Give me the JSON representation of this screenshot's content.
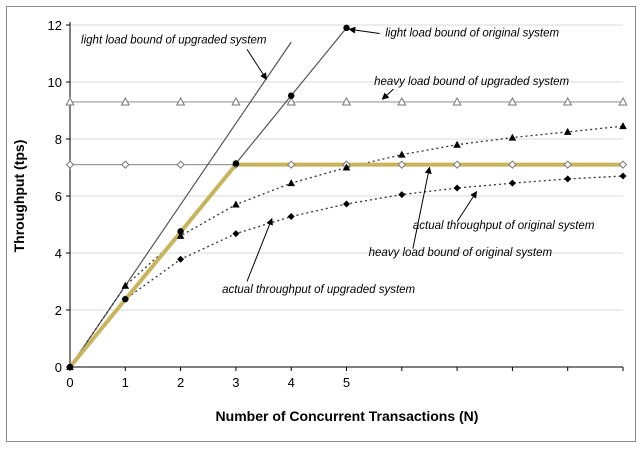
{
  "chart_data": {
    "type": "line",
    "xlabel": "Number of Concurrent Transactions (N)",
    "ylabel": "Throughput (tps)",
    "xlim": [
      0,
      10
    ],
    "ylim": [
      0,
      12
    ],
    "x_ticks": [
      0,
      1,
      2,
      3,
      4,
      5
    ],
    "y_ticks": [
      0,
      2,
      4,
      6,
      8,
      10,
      12
    ],
    "grid": "horizontal at 2-tps steps",
    "series": [
      {
        "key": "light_upgraded",
        "style": "solid",
        "color": "#555555",
        "marker": "none",
        "x": [
          0,
          1,
          2,
          3,
          4
        ],
        "y": [
          0,
          2.85,
          5.7,
          8.55,
          11.4
        ]
      },
      {
        "key": "light_original",
        "style": "solid",
        "color": "#555555",
        "marker": "circle",
        "x": [
          0,
          1,
          2,
          3,
          4,
          5
        ],
        "y": [
          0,
          2.38,
          4.76,
          7.14,
          9.52,
          11.9
        ]
      },
      {
        "key": "heavy_upgraded",
        "style": "solid",
        "color": "#999999",
        "marker": "open-triangle",
        "x": [
          0,
          1,
          2,
          3,
          4,
          5,
          6,
          7,
          8,
          9,
          10
        ],
        "y": [
          9.3,
          9.3,
          9.3,
          9.3,
          9.3,
          9.3,
          9.3,
          9.3,
          9.3,
          9.3,
          9.3
        ]
      },
      {
        "key": "heavy_original",
        "style": "solid",
        "color": "#999999",
        "marker": "open-diamond",
        "x": [
          0,
          1,
          2,
          3,
          4,
          5,
          6,
          7,
          8,
          9,
          10
        ],
        "y": [
          7.1,
          7.1,
          7.1,
          7.1,
          7.1,
          7.1,
          7.1,
          7.1,
          7.1,
          7.1,
          7.1
        ]
      },
      {
        "key": "bound_highlight",
        "style": "thick",
        "color": "#c8b45a",
        "marker": "none",
        "x": [
          0,
          3,
          10
        ],
        "y": [
          0,
          7.1,
          7.1
        ]
      },
      {
        "key": "actual_upgraded",
        "style": "dotted",
        "color": "#333333",
        "marker": "filled-triangle",
        "x": [
          0,
          1,
          2,
          3,
          4,
          5,
          6,
          7,
          8,
          9,
          10
        ],
        "y": [
          0,
          2.85,
          4.6,
          5.7,
          6.45,
          7.0,
          7.45,
          7.8,
          8.05,
          8.25,
          8.45
        ]
      },
      {
        "key": "actual_original",
        "style": "dotted",
        "color": "#333333",
        "marker": "filled-diamond",
        "x": [
          0,
          1,
          2,
          3,
          4,
          5,
          6,
          7,
          8,
          9,
          10
        ],
        "y": [
          0,
          2.38,
          3.78,
          4.68,
          5.28,
          5.72,
          6.05,
          6.28,
          6.45,
          6.6,
          6.7
        ]
      }
    ],
    "annotations": [
      {
        "text": "light load bound of upgraded system",
        "x": 0.2,
        "y": 11.35,
        "arrow": [
          [
            3.2,
            11.15
          ],
          [
            3.55,
            10.1
          ]
        ]
      },
      {
        "text": "light load bound of original system",
        "x": 5.7,
        "y": 11.6,
        "arrow": [
          [
            5.6,
            11.7
          ],
          [
            5.05,
            11.85
          ]
        ]
      },
      {
        "text": "heavy load bound of upgraded system",
        "x": 5.5,
        "y": 9.9,
        "arrow": [
          [
            5.85,
            9.75
          ],
          [
            5.65,
            9.4
          ]
        ]
      },
      {
        "text": "actual throughput of original system",
        "x": 6.2,
        "y": 4.85,
        "arrow": [
          [
            7.0,
            5.1
          ],
          [
            7.35,
            6.15
          ]
        ]
      },
      {
        "text": "heavy load bound of original system",
        "x": 5.4,
        "y": 3.9,
        "arrow": [
          [
            6.2,
            4.15
          ],
          [
            6.5,
            7.0
          ]
        ]
      },
      {
        "text": "actual throughput of upgraded system",
        "x": 2.75,
        "y": 2.6,
        "arrow": [
          [
            3.2,
            3.0
          ],
          [
            3.65,
            5.2
          ]
        ]
      }
    ]
  }
}
